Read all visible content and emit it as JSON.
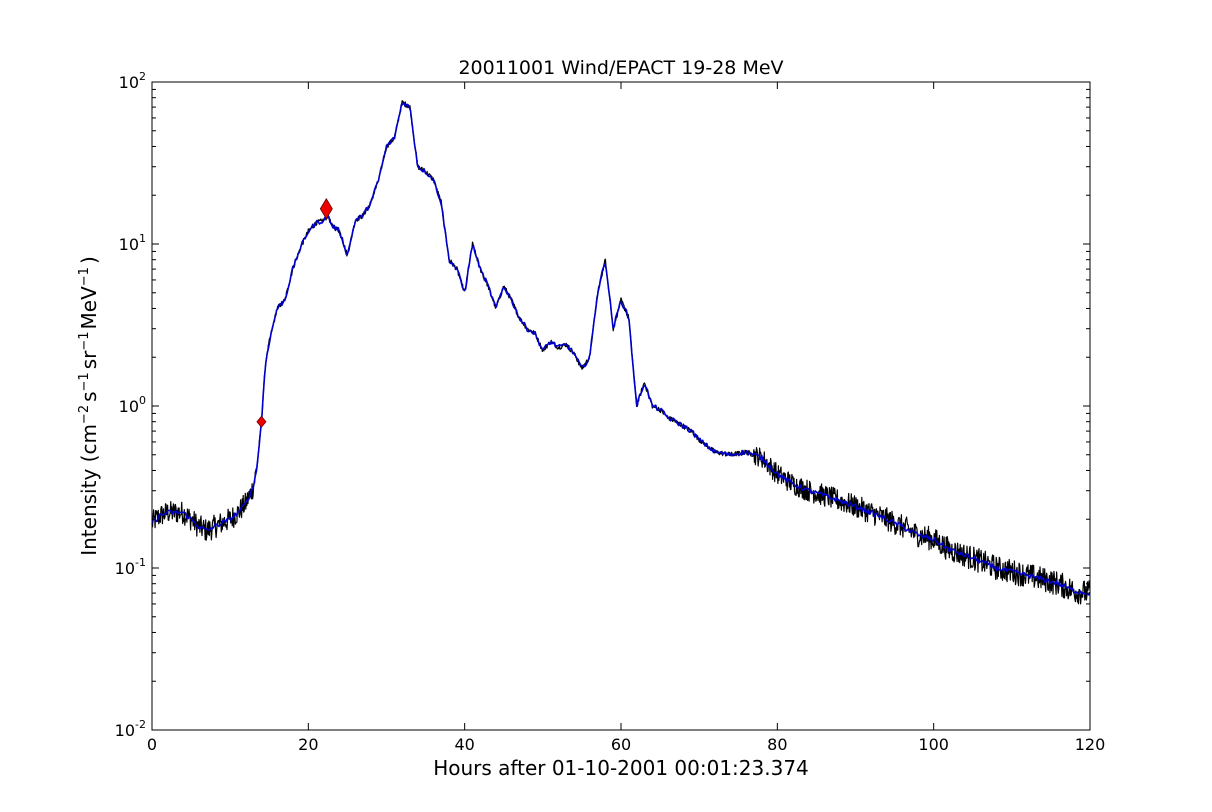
{
  "chart_data": {
    "type": "line",
    "title": "20011001 Wind/EPACT 19-28 MeV",
    "xlabel": "Hours after 01-10-2001 00:01:23.374",
    "ylabel": {
      "base": "Intensity (cm",
      "sup1": "−2",
      "mid1": "s",
      "sup2": "−1",
      "mid2": "sr",
      "sup3": "−1",
      "mid3": "MeV",
      "sup4": "−1",
      "end": ")"
    },
    "xlim": [
      0,
      120
    ],
    "ylim": [
      0.01,
      100
    ],
    "yscale": "log",
    "grid": false,
    "x_ticks": [
      0,
      20,
      40,
      60,
      80,
      100,
      120
    ],
    "x_tick_labels": [
      "0",
      "20",
      "40",
      "60",
      "80",
      "100",
      "120"
    ],
    "y_ticks": [
      {
        "value": 0.01,
        "base": "10",
        "exp": "-2"
      },
      {
        "value": 0.1,
        "base": "10",
        "exp": "-1"
      },
      {
        "value": 1,
        "base": "10",
        "exp": "0"
      },
      {
        "value": 10,
        "base": "10",
        "exp": "1"
      },
      {
        "value": 100,
        "base": "10",
        "exp": "2"
      }
    ],
    "series": [
      {
        "color": "#000000",
        "style": "noisy raw",
        "x": [
          0,
          1,
          2,
          3,
          4,
          5,
          6,
          7,
          8,
          9,
          10,
          11,
          12,
          13,
          13.5,
          14,
          14.5,
          15,
          16,
          17,
          18,
          19,
          20,
          21,
          22,
          22.5,
          23,
          24,
          25,
          26,
          27,
          28,
          29,
          30,
          31,
          32,
          33,
          34,
          35,
          36,
          37,
          38,
          39,
          40,
          41,
          42,
          43,
          44,
          45,
          46,
          47,
          48,
          49,
          50,
          51,
          52,
          53,
          54,
          55,
          56,
          57,
          58,
          59,
          60,
          61,
          62,
          63,
          64,
          65,
          66,
          67,
          68,
          69,
          70,
          72,
          74,
          76,
          78,
          80,
          82,
          84,
          86,
          88,
          90,
          92,
          94,
          96,
          98,
          100,
          102,
          104,
          106,
          108,
          110,
          112,
          114,
          116,
          118,
          120
        ],
        "y": [
          0.19,
          0.21,
          0.22,
          0.22,
          0.22,
          0.2,
          0.18,
          0.17,
          0.18,
          0.19,
          0.2,
          0.22,
          0.25,
          0.32,
          0.45,
          0.8,
          1.8,
          2.5,
          4.0,
          4.5,
          7.0,
          9.5,
          12.0,
          13.5,
          14.0,
          15.0,
          13.0,
          12.0,
          8.5,
          14.0,
          15.0,
          18.0,
          25.0,
          40.0,
          45.0,
          75.0,
          70.0,
          30.0,
          28.0,
          25.0,
          18.0,
          8.0,
          7.0,
          5.0,
          10.0,
          7.0,
          5.5,
          4.0,
          5.5,
          4.5,
          3.5,
          3.0,
          2.8,
          2.2,
          2.5,
          2.3,
          2.4,
          2.1,
          1.7,
          2.0,
          5.0,
          8.0,
          3.0,
          4.5,
          3.5,
          1.0,
          1.4,
          1.0,
          0.95,
          0.85,
          0.8,
          0.75,
          0.7,
          0.62,
          0.52,
          0.5,
          0.52,
          0.48,
          0.38,
          0.33,
          0.3,
          0.28,
          0.26,
          0.24,
          0.22,
          0.2,
          0.18,
          0.16,
          0.15,
          0.13,
          0.12,
          0.11,
          0.1,
          0.095,
          0.09,
          0.085,
          0.08,
          0.072,
          0.07
        ]
      },
      {
        "color": "#0000cc",
        "style": "smoothed",
        "x": [
          0,
          1,
          2,
          3,
          4,
          5,
          6,
          7,
          8,
          9,
          10,
          11,
          12,
          13,
          13.5,
          14,
          14.5,
          15,
          16,
          17,
          18,
          19,
          20,
          21,
          22,
          22.5,
          23,
          24,
          25,
          26,
          27,
          28,
          29,
          30,
          31,
          32,
          33,
          34,
          35,
          36,
          37,
          38,
          39,
          40,
          41,
          42,
          43,
          44,
          45,
          46,
          47,
          48,
          49,
          50,
          51,
          52,
          53,
          54,
          55,
          56,
          57,
          58,
          59,
          60,
          61,
          62,
          63,
          64,
          65,
          66,
          67,
          68,
          69,
          70,
          72,
          74,
          76,
          78,
          80,
          82,
          84,
          86,
          88,
          90,
          92,
          94,
          96,
          98,
          100,
          102,
          104,
          106,
          108,
          110,
          112,
          114,
          116,
          118,
          120
        ],
        "y": [
          0.19,
          0.21,
          0.22,
          0.22,
          0.22,
          0.2,
          0.18,
          0.17,
          0.18,
          0.19,
          0.2,
          0.22,
          0.25,
          0.32,
          0.45,
          0.8,
          1.8,
          2.5,
          4.0,
          4.5,
          7.0,
          9.5,
          12.0,
          13.5,
          14.0,
          15.0,
          13.0,
          12.0,
          8.5,
          14.0,
          15.0,
          18.0,
          25.0,
          40.0,
          45.0,
          75.0,
          70.0,
          30.0,
          28.0,
          25.0,
          18.0,
          8.0,
          7.0,
          5.0,
          10.0,
          7.0,
          5.5,
          4.0,
          5.5,
          4.5,
          3.5,
          3.0,
          2.8,
          2.2,
          2.5,
          2.3,
          2.4,
          2.1,
          1.7,
          2.0,
          5.0,
          8.0,
          3.0,
          4.5,
          3.5,
          1.0,
          1.4,
          1.0,
          0.95,
          0.85,
          0.8,
          0.75,
          0.7,
          0.62,
          0.52,
          0.5,
          0.52,
          0.48,
          0.38,
          0.33,
          0.3,
          0.28,
          0.26,
          0.24,
          0.22,
          0.2,
          0.18,
          0.16,
          0.15,
          0.13,
          0.12,
          0.11,
          0.1,
          0.095,
          0.09,
          0.085,
          0.08,
          0.072,
          0.07
        ]
      }
    ],
    "markers": [
      {
        "shape": "diamond",
        "size": "small",
        "color": "#ee0000",
        "x": 14.0,
        "y": 0.8
      },
      {
        "shape": "diamond",
        "size": "large",
        "color": "#ee0000",
        "x": 22.3,
        "y": 16.5
      }
    ]
  }
}
